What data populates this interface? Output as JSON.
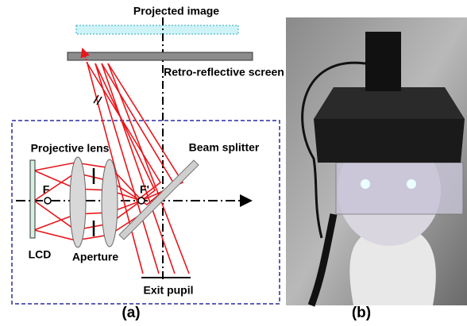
{
  "panel_a": {
    "projected_image": "Projected image",
    "screen": "Retro-reflective screen",
    "projective_lens": "Projective lens",
    "beam_splitter": "Beam splitter",
    "focal_point": "F",
    "focal_point_prime": "F'",
    "lcd": "LCD",
    "aperture": "Aperture",
    "exit_pupil": "Exit pupil",
    "caption": "(a)"
  },
  "panel_b": {
    "caption": "(b)"
  }
}
